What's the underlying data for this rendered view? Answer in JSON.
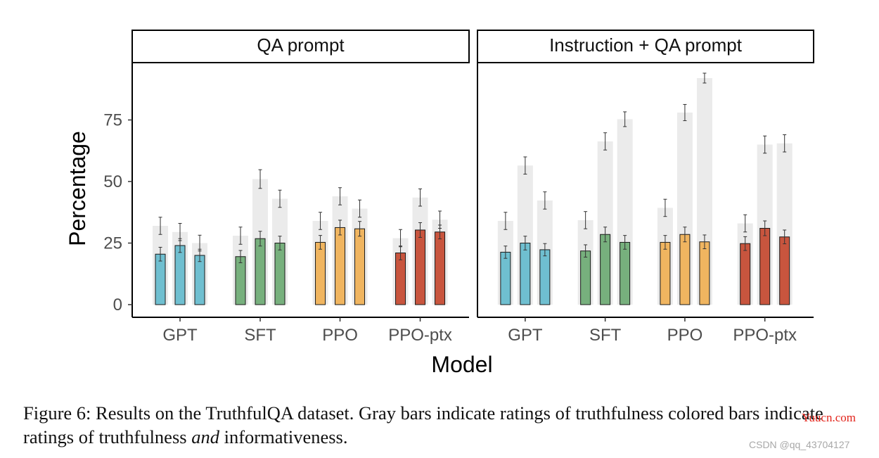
{
  "chart_data": {
    "type": "bar",
    "y_label": "Percentage",
    "x_label": "Model",
    "y_ticks": [
      0,
      25,
      50,
      75
    ],
    "ylim": [
      0,
      97
    ],
    "grid": false,
    "legend": "none",
    "colors": {
      "GPT": "#6fbfd0",
      "SFT": "#77b07d",
      "PPO": "#f0b560",
      "PPO-ptx": "#c8553e",
      "gray_bar": "#ebebeb",
      "error_bar": "#333333"
    },
    "panels": [
      {
        "title": "QA prompt",
        "groups": [
          {
            "model": "GPT",
            "gray": [
              32,
              29.5,
              25
            ],
            "gray_err": [
              3.5,
              3.5,
              3.2
            ],
            "colored": [
              20.5,
              24,
              20
            ],
            "colored_err": [
              2.8,
              2.8,
              2.5
            ]
          },
          {
            "model": "SFT",
            "gray": [
              28,
              51,
              43
            ],
            "gray_err": [
              3.5,
              3.8,
              3.5
            ],
            "colored": [
              19.5,
              26.8,
              25
            ],
            "colored_err": [
              2.5,
              3,
              2.8
            ]
          },
          {
            "model": "PPO",
            "gray": [
              34,
              44,
              39
            ],
            "gray_err": [
              3.5,
              3.5,
              3.5
            ],
            "colored": [
              25.3,
              31.3,
              30.8
            ],
            "colored_err": [
              2.8,
              3,
              3
            ]
          },
          {
            "model": "PPO-ptx",
            "gray": [
              27,
              43.5,
              34.5
            ],
            "gray_err": [
              3.5,
              3.5,
              3.5
            ],
            "colored": [
              21,
              30.3,
              29.5
            ],
            "colored_err": [
              2.8,
              3,
              2.8
            ]
          }
        ]
      },
      {
        "title": "Instruction + QA prompt",
        "groups": [
          {
            "model": "GPT",
            "gray": [
              34,
              56.5,
              42.3
            ],
            "gray_err": [
              3.5,
              3.5,
              3.5
            ],
            "colored": [
              21.3,
              25,
              22.3
            ],
            "colored_err": [
              2.5,
              2.8,
              2.5
            ]
          },
          {
            "model": "SFT",
            "gray": [
              34.3,
              66.3,
              75.3
            ],
            "gray_err": [
              3.5,
              3.5,
              3
            ],
            "colored": [
              21.8,
              28.5,
              25.3
            ],
            "colored_err": [
              2.5,
              3,
              2.8
            ]
          },
          {
            "model": "PPO",
            "gray": [
              39.3,
              78,
              92
            ],
            "gray_err": [
              3.5,
              3.3,
              2
            ],
            "colored": [
              25.3,
              28.5,
              25.5
            ],
            "colored_err": [
              2.8,
              3,
              2.8
            ]
          },
          {
            "model": "PPO-ptx",
            "gray": [
              33,
              65,
              65.5
            ],
            "gray_err": [
              3.5,
              3.5,
              3.5
            ],
            "colored": [
              24.8,
              31,
              27.5
            ],
            "colored_err": [
              2.8,
              3,
              2.8
            ]
          }
        ]
      }
    ]
  },
  "caption": {
    "prefix": "Figure 6: Results on the TruthfulQA dataset. Gray bars indicate ratings of truthfulness colored bars indicate ratings of truthfulness ",
    "emphasis": "and",
    "suffix": " informativeness."
  },
  "watermarks": {
    "yuucn": "Yuucn.com",
    "csdn": "CSDN @qq_43704127"
  }
}
